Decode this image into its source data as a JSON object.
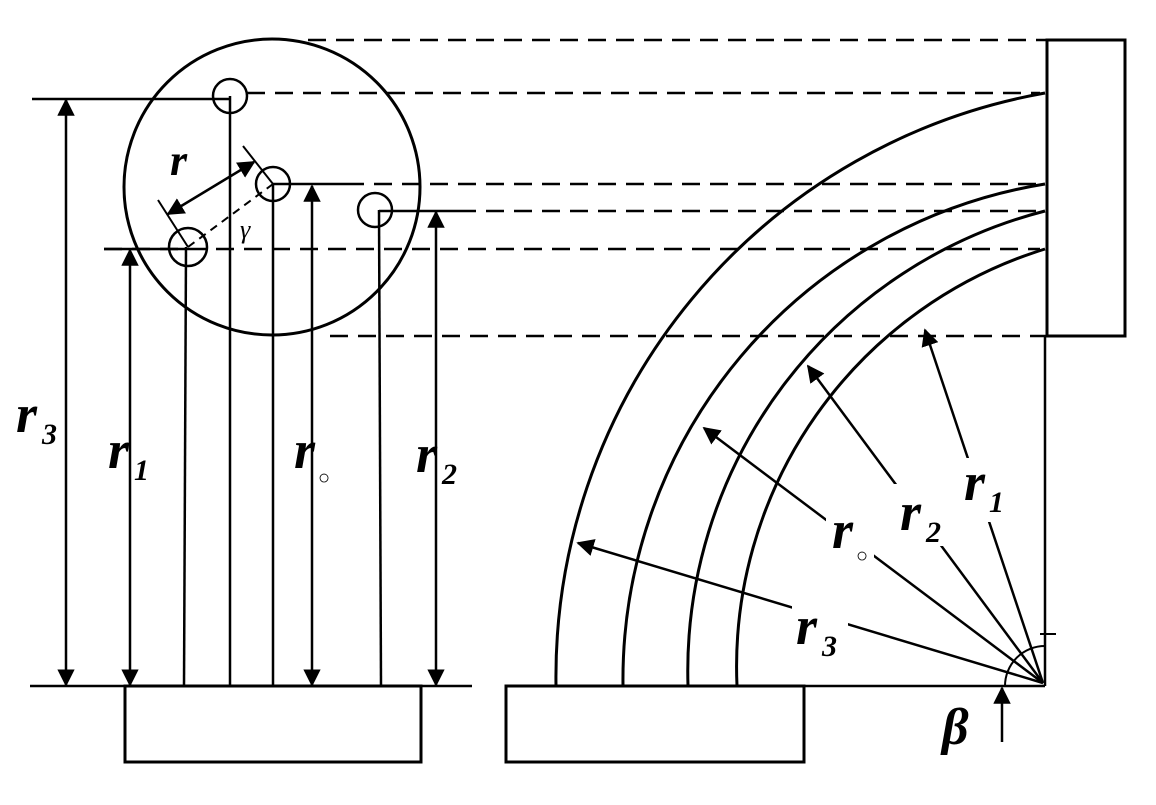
{
  "labels": {
    "r_main": "r",
    "gamma": "γ",
    "left_r3": "r",
    "left_r3_sub": "3",
    "left_r1": "r",
    "left_r1_sub": "1",
    "left_ro": "r",
    "left_ro_sub": "○",
    "left_r2": "r",
    "left_r2_sub": "2",
    "right_r1": "r",
    "right_r1_sub": "1",
    "right_r2": "r",
    "right_r2_sub": "2",
    "right_ro": "r",
    "right_ro_sub": "○",
    "right_r3": "r",
    "right_r3_sub": "3",
    "beta": "β"
  },
  "colors": {
    "line": "#000000",
    "background": "#ffffff"
  }
}
